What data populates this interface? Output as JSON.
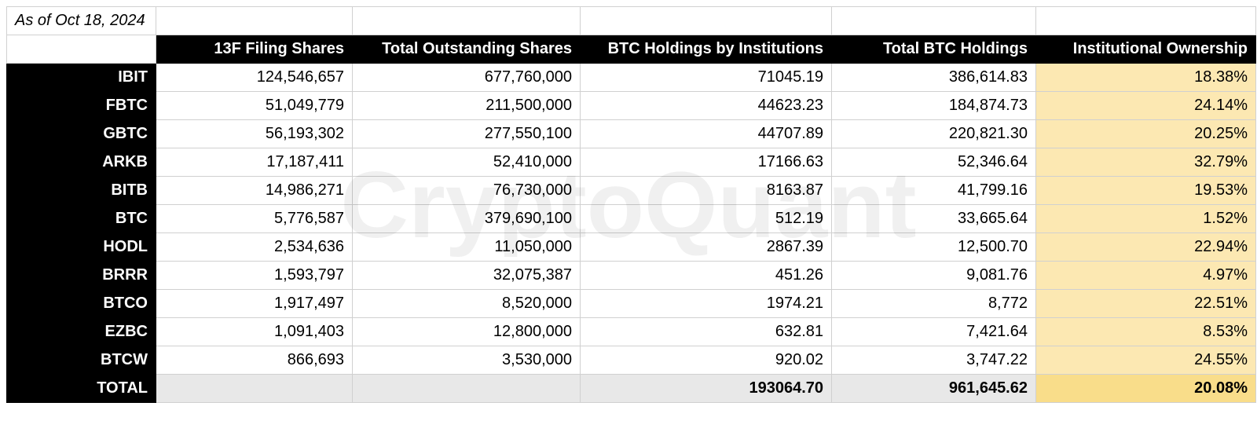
{
  "date_label": "As of Oct 18, 2024",
  "watermark_text": "CryptoQuant",
  "table": {
    "columns": [
      "13F Filing Shares",
      "Total Outstanding Shares",
      "BTC Holdings by Institutions",
      "Total BTC Holdings",
      "Institutional Ownership"
    ],
    "highlight_column_index": 4,
    "highlight_color": "#fce8b2",
    "highlight_color_total": "#f9dd8a",
    "header_bg": "#000000",
    "header_fg": "#ffffff",
    "cell_bg": "#ffffff",
    "cell_fg": "#000000",
    "total_bg": "#e8e8e8",
    "border_color": "#d0d0d0",
    "font_size_pt": 15,
    "rows": [
      {
        "label": "IBIT",
        "cells": [
          "124,546,657",
          "677,760,000",
          "71045.19",
          "386,614.83",
          "18.38%"
        ]
      },
      {
        "label": "FBTC",
        "cells": [
          "51,049,779",
          "211,500,000",
          "44623.23",
          "184,874.73",
          "24.14%"
        ]
      },
      {
        "label": "GBTC",
        "cells": [
          "56,193,302",
          "277,550,100",
          "44707.89",
          "220,821.30",
          "20.25%"
        ]
      },
      {
        "label": "ARKB",
        "cells": [
          "17,187,411",
          "52,410,000",
          "17166.63",
          "52,346.64",
          "32.79%"
        ]
      },
      {
        "label": "BITB",
        "cells": [
          "14,986,271",
          "76,730,000",
          "8163.87",
          "41,799.16",
          "19.53%"
        ]
      },
      {
        "label": "BTC",
        "cells": [
          "5,776,587",
          "379,690,100",
          "512.19",
          "33,665.64",
          "1.52%"
        ]
      },
      {
        "label": "HODL",
        "cells": [
          "2,534,636",
          "11,050,000",
          "2867.39",
          "12,500.70",
          "22.94%"
        ]
      },
      {
        "label": "BRRR",
        "cells": [
          "1,593,797",
          "32,075,387",
          "451.26",
          "9,081.76",
          "4.97%"
        ]
      },
      {
        "label": "BTCO",
        "cells": [
          "1,917,497",
          "8,520,000",
          "1974.21",
          "8,772",
          "22.51%"
        ]
      },
      {
        "label": "EZBC",
        "cells": [
          "1,091,403",
          "12,800,000",
          "632.81",
          "7,421.64",
          "8.53%"
        ]
      },
      {
        "label": "BTCW",
        "cells": [
          "866,693",
          "3,530,000",
          "920.02",
          "3,747.22",
          "24.55%"
        ]
      }
    ],
    "total": {
      "label": "TOTAL",
      "cells": [
        "",
        "",
        "193064.70",
        "961,645.62",
        "20.08%"
      ]
    }
  }
}
